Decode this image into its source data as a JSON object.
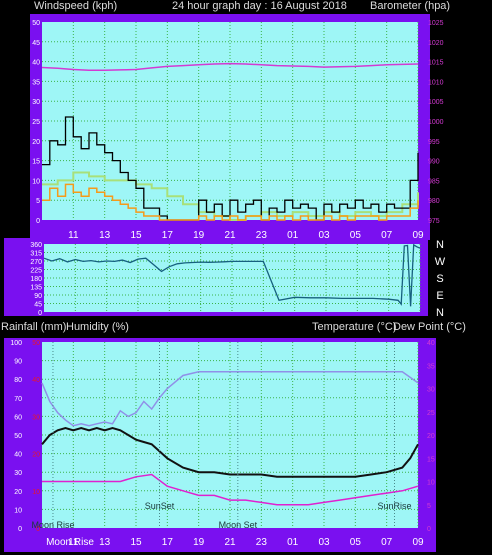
{
  "header_top": {
    "left": "Windspeed (kph)",
    "center": "24 hour graph day : 16 August 2018",
    "right": "Barometer (hpa)"
  },
  "direction_labels": [
    "N",
    "W",
    "S",
    "E",
    "N"
  ],
  "header_bottom": {
    "left1": "Rainfall (mm)",
    "left2": "Humidity (%)",
    "right1": "Temperature (°C)",
    "right2": "Dew Point (°C)"
  },
  "annotations": {
    "sunset": "SunSet",
    "sunrise": "SunRise",
    "moonrise": "Moon Rise",
    "moonset": "Moon Set",
    "moonrise_axis": "Moon Rise"
  },
  "colors": {
    "plot_bg": "#9ef6f6",
    "frame": "#7a10f0",
    "grid": "#3cb44a",
    "wind_gust": "#000000",
    "wind_avg": "#f59a1a",
    "wind_light": "#a8e07a",
    "barometer": "#d33ad3",
    "direction": "#16607e",
    "humidity": "#9090e8",
    "temperature": "#111111",
    "dew_point": "#e020d0",
    "rain_axis": "#e8182a",
    "white_axis": "#ffffff",
    "text": "#dcdcdc"
  },
  "chart_data": [
    {
      "type": "line",
      "name": "wind-barometer",
      "x_ticks": [
        "11",
        "13",
        "15",
        "17",
        "19",
        "21",
        "23",
        "01",
        "03",
        "05",
        "07",
        "09"
      ],
      "y_left": {
        "label": "Windspeed (kph)",
        "lim": [
          0,
          50
        ],
        "ticks": [
          "0",
          "5",
          "10",
          "15",
          "20",
          "25",
          "30",
          "35",
          "40",
          "45",
          "50"
        ]
      },
      "y_right": {
        "label": "Barometer (hpa)",
        "lim": [
          975,
          1025
        ],
        "ticks": [
          "975",
          "980",
          "985",
          "990",
          "995",
          "1000",
          "1005",
          "1010",
          "1015",
          "1020",
          "1025"
        ]
      },
      "series": [
        {
          "name": "Barometer (hpa)",
          "key": "barometer",
          "x": [
            0,
            1,
            2,
            3,
            4,
            5,
            6,
            7,
            8,
            9,
            10,
            11,
            12,
            13,
            14,
            15,
            16,
            17,
            18,
            19,
            20,
            21,
            22,
            23,
            24
          ],
          "y": [
            1013.5,
            1013.3,
            1013.0,
            1012.8,
            1012.8,
            1012.9,
            1013.0,
            1013.4,
            1013.8,
            1014.0,
            1014.2,
            1014.4,
            1014.5,
            1014.4,
            1014.2,
            1014.0,
            1013.9,
            1013.8,
            1013.6,
            1013.7,
            1013.8,
            1014.0,
            1014.2,
            1014.3,
            1014.4
          ]
        },
        {
          "name": "Windspeed (kph)",
          "key": "wind_gust",
          "x": [
            0,
            0.5,
            1,
            1.5,
            2,
            2.5,
            3,
            3.5,
            4,
            4.5,
            5,
            5.5,
            6,
            6.5,
            7,
            7.5,
            8,
            8.5,
            9,
            9.5,
            10,
            10.5,
            11,
            11.5,
            12,
            12.5,
            13,
            13.5,
            14,
            14.5,
            15,
            15.5,
            16,
            16.5,
            17,
            17.5,
            18,
            18.5,
            19,
            19.5,
            20,
            20.5,
            21,
            21.5,
            22,
            22.5,
            23,
            23.5,
            24
          ],
          "y": [
            14,
            20,
            19,
            26,
            21,
            18,
            22,
            19,
            17,
            15,
            12,
            10,
            8,
            3,
            3,
            1,
            0,
            0,
            0,
            0,
            5,
            2,
            4,
            1,
            5,
            2,
            4,
            5,
            0,
            3,
            2,
            5,
            3,
            4,
            3,
            0,
            4,
            2,
            4,
            3,
            5,
            3,
            4,
            2,
            4,
            3,
            3,
            10,
            17
          ]
        },
        {
          "name": "",
          "key": "wind_light",
          "x": [
            0,
            1,
            2,
            3,
            4,
            5,
            6,
            7,
            8,
            9,
            10,
            11,
            12,
            13,
            14,
            15,
            16,
            17,
            18,
            19,
            20,
            21,
            22,
            23,
            24
          ],
          "y": [
            9,
            10,
            12,
            11,
            10,
            10,
            9,
            8,
            6,
            4,
            2,
            1,
            0,
            1,
            2,
            1,
            2,
            1,
            2,
            1,
            2,
            1,
            2,
            4,
            7
          ]
        },
        {
          "name": "",
          "key": "wind_avg",
          "x": [
            0,
            0.5,
            1,
            1.5,
            2,
            2.5,
            3,
            3.5,
            4,
            4.5,
            5,
            5.5,
            6,
            6.5,
            7,
            7.5,
            8,
            8.5,
            9,
            9.5,
            10,
            10.5,
            11,
            11.5,
            12,
            12.5,
            13,
            13.5,
            14,
            14.5,
            15,
            15.5,
            16,
            16.5,
            17,
            17.5,
            18,
            18.5,
            19,
            19.5,
            20,
            20.5,
            21,
            21.5,
            22,
            22.5,
            23,
            23.5,
            24
          ],
          "y": [
            5,
            8,
            6,
            9,
            7,
            6,
            8,
            7,
            6,
            5,
            4,
            3,
            2,
            1,
            1,
            0,
            0,
            0,
            0,
            0,
            1,
            0,
            1,
            0,
            1,
            0,
            1,
            1,
            0,
            1,
            0,
            1,
            0,
            1,
            0,
            0,
            1,
            0,
            1,
            0,
            1,
            1,
            1,
            0,
            1,
            1,
            1,
            3,
            5
          ]
        }
      ]
    },
    {
      "type": "line",
      "name": "wind-direction",
      "x_ticks": [
        "11",
        "13",
        "15",
        "17",
        "19",
        "21",
        "23",
        "01",
        "03",
        "05",
        "07",
        "09"
      ],
      "y_left": {
        "lim": [
          0,
          360
        ],
        "ticks": [
          "0",
          "45",
          "90",
          "135",
          "180",
          "225",
          "270",
          "315",
          "360"
        ]
      },
      "y_right": {
        "labels": [
          "N",
          "W",
          "S",
          "E",
          "N"
        ]
      },
      "series": [
        {
          "name": "",
          "key": "direction",
          "x": [
            0,
            0.5,
            1,
            1.5,
            2,
            2.5,
            3,
            3.5,
            4,
            4.5,
            5,
            5.5,
            6,
            6.5,
            7,
            7.5,
            8,
            8.5,
            9,
            9.5,
            10,
            10.5,
            11,
            11.5,
            12,
            13,
            14,
            15,
            16,
            17,
            18,
            19,
            20,
            21,
            22,
            22.6,
            22.8,
            23.0,
            23.2,
            23.4,
            23.6,
            23.8,
            24
          ],
          "y": [
            285,
            270,
            282,
            265,
            278,
            268,
            272,
            265,
            270,
            268,
            275,
            262,
            280,
            285,
            250,
            215,
            240,
            255,
            260,
            262,
            264,
            263,
            264,
            266,
            268,
            268,
            268,
            62,
            78,
            75,
            75,
            72,
            72,
            72,
            68,
            62,
            42,
            350,
            352,
            30,
            355,
            345,
            338
          ]
        }
      ]
    },
    {
      "type": "line",
      "name": "temperature-humidity-rain",
      "x_ticks": [
        "11",
        "13",
        "15",
        "17",
        "19",
        "21",
        "23",
        "01",
        "03",
        "05",
        "07",
        "09"
      ],
      "y_left_white": {
        "label": "Humidity (%)",
        "lim": [
          0,
          100
        ],
        "ticks": [
          "0",
          "10",
          "20",
          "30",
          "40",
          "50",
          "60",
          "70",
          "80",
          "90",
          "100"
        ]
      },
      "y_left_red": {
        "label": "Rainfall (mm)",
        "lim": [
          0,
          50
        ],
        "ticks": [
          "0",
          "10",
          "20",
          "30",
          "40",
          "50"
        ]
      },
      "y_right": {
        "label": "Temperature (°C)",
        "lim": [
          0,
          40
        ],
        "ticks": [
          "0",
          "5",
          "10",
          "15",
          "20",
          "25",
          "30",
          "35",
          "40"
        ]
      },
      "series": [
        {
          "name": "Humidity (%)",
          "key": "humidity",
          "x": [
            0,
            0.5,
            1,
            1.5,
            2,
            2.5,
            3,
            3.5,
            4,
            4.5,
            5,
            5.5,
            6,
            6.5,
            7,
            7.5,
            8,
            9,
            10,
            11,
            12,
            13,
            14,
            15,
            16,
            17,
            18,
            19,
            20,
            21,
            22,
            23,
            24
          ],
          "y": [
            78,
            68,
            62,
            58,
            55,
            56,
            55,
            56,
            57,
            56,
            63,
            60,
            62,
            68,
            64,
            70,
            75,
            82,
            84,
            84,
            84,
            84,
            84,
            84,
            84,
            84,
            84,
            84,
            84,
            84,
            84,
            84,
            78
          ]
        },
        {
          "name": "Temperature (°C)",
          "key": "temperature",
          "x": [
            0,
            0.5,
            1,
            1.5,
            2,
            2.5,
            3,
            3.5,
            4,
            4.5,
            5,
            5.5,
            6,
            6.5,
            7,
            8,
            9,
            10,
            11,
            12,
            13,
            14,
            15,
            16,
            17,
            18,
            19,
            20,
            21,
            22,
            23,
            23.5,
            24
          ],
          "y": [
            18,
            20,
            21,
            21.5,
            21,
            21.5,
            21,
            21.5,
            21,
            21.5,
            21,
            20,
            19,
            18.5,
            18,
            15,
            13,
            12,
            12,
            11.5,
            11.5,
            11.5,
            11,
            11,
            11,
            11,
            11,
            11,
            11.5,
            12,
            13,
            15,
            18
          ]
        },
        {
          "name": "Dew Point (°C)",
          "key": "dew_point",
          "x": [
            0,
            1,
            2,
            3,
            4,
            5,
            6,
            7,
            8,
            9,
            10,
            11,
            12,
            13,
            14,
            15,
            16,
            17,
            18,
            19,
            20,
            21,
            22,
            23,
            24
          ],
          "y": [
            10,
            10,
            10,
            10,
            10,
            10,
            11,
            11.5,
            9,
            8,
            7,
            7,
            6,
            6,
            5.5,
            5,
            5,
            5,
            5.5,
            6,
            6.5,
            7,
            7.5,
            8,
            9
          ]
        }
      ],
      "annotations": [
        "SunSet",
        "Moon Set",
        "SunRise",
        "Moon Rise"
      ]
    }
  ]
}
